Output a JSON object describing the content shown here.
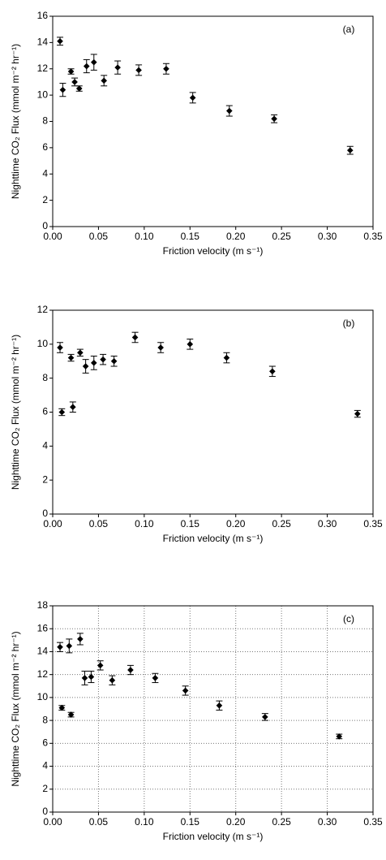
{
  "chart_data": [
    {
      "type": "scatter",
      "annotation": "(a)",
      "xlabel": "Friction velocity (m s⁻¹)",
      "ylabel": "Nighttime CO₂ Flux (mmol m⁻² hr⁻¹)",
      "color": "#000000",
      "grid": false,
      "x": [
        0.008,
        0.011,
        0.02,
        0.024,
        0.029,
        0.037,
        0.045,
        0.056,
        0.071,
        0.094,
        0.124,
        0.153,
        0.193,
        0.242,
        0.325
      ],
      "values": [
        14.1,
        10.4,
        11.8,
        11.0,
        10.5,
        12.2,
        12.5,
        11.1,
        12.1,
        11.9,
        12.0,
        9.8,
        8.8,
        8.2,
        5.8
      ],
      "errors": [
        0.3,
        0.5,
        0.2,
        0.3,
        0.2,
        0.5,
        0.6,
        0.4,
        0.5,
        0.4,
        0.4,
        0.4,
        0.4,
        0.3,
        0.3
      ],
      "xlim": [
        0,
        0.35
      ],
      "xticks": [
        {
          "value": 0,
          "label": "0.00"
        },
        {
          "value": 0.05,
          "label": "0.05"
        },
        {
          "value": 0.1,
          "label": "0.10"
        },
        {
          "value": 0.15,
          "label": "0.15"
        },
        {
          "value": 0.2,
          "label": "0.20"
        },
        {
          "value": 0.25,
          "label": "0.25"
        },
        {
          "value": 0.3,
          "label": "0.30"
        },
        {
          "value": 0.35,
          "label": "0.35"
        }
      ],
      "ylim": [
        0,
        16
      ],
      "yticks": [
        0,
        2,
        4,
        6,
        8,
        10,
        12,
        14,
        16
      ]
    },
    {
      "type": "scatter",
      "annotation": "(b)",
      "xlabel": "Friction velocity (m s⁻¹)",
      "ylabel": "Nighttime CO₂ Flux (mmol m⁻² hr⁻¹)",
      "color": "#000000",
      "grid": false,
      "x": [
        0.008,
        0.01,
        0.02,
        0.022,
        0.03,
        0.036,
        0.045,
        0.055,
        0.067,
        0.09,
        0.118,
        0.15,
        0.19,
        0.24,
        0.333
      ],
      "values": [
        9.8,
        6.0,
        9.2,
        6.3,
        9.5,
        8.7,
        8.9,
        9.1,
        9.0,
        10.4,
        9.8,
        10.0,
        9.2,
        8.4,
        5.9
      ],
      "errors": [
        0.3,
        0.2,
        0.2,
        0.3,
        0.2,
        0.4,
        0.4,
        0.3,
        0.3,
        0.3,
        0.3,
        0.3,
        0.3,
        0.3,
        0.2
      ],
      "xlim": [
        0,
        0.35
      ],
      "xticks": [
        {
          "value": 0,
          "label": "0.00"
        },
        {
          "value": 0.05,
          "label": "0.05"
        },
        {
          "value": 0.1,
          "label": "0.10"
        },
        {
          "value": 0.15,
          "label": "0.15"
        },
        {
          "value": 0.2,
          "label": "0.20"
        },
        {
          "value": 0.25,
          "label": "0.25"
        },
        {
          "value": 0.3,
          "label": "0.30"
        },
        {
          "value": 0.35,
          "label": "0.35"
        }
      ],
      "ylim": [
        0,
        12
      ],
      "yticks": [
        0,
        2,
        4,
        6,
        8,
        10,
        12
      ]
    },
    {
      "type": "scatter",
      "annotation": "(c)",
      "xlabel": "Friction velocity (m s⁻¹)",
      "ylabel": "Nighttime CO₂ Flux (mmol m⁻² hr⁻¹)",
      "color": "#000000",
      "grid": true,
      "x": [
        0.008,
        0.01,
        0.018,
        0.02,
        0.03,
        0.035,
        0.042,
        0.052,
        0.065,
        0.085,
        0.112,
        0.145,
        0.182,
        0.232,
        0.313
      ],
      "values": [
        14.4,
        9.1,
        14.5,
        8.5,
        15.1,
        11.7,
        11.8,
        12.8,
        11.5,
        12.4,
        11.7,
        10.6,
        9.3,
        8.3,
        6.6
      ],
      "errors": [
        0.4,
        0.2,
        0.6,
        0.2,
        0.5,
        0.6,
        0.5,
        0.4,
        0.4,
        0.4,
        0.4,
        0.4,
        0.4,
        0.3,
        0.2
      ],
      "xlim": [
        0,
        0.35
      ],
      "xticks": [
        {
          "value": 0,
          "label": "0.00"
        },
        {
          "value": 0.05,
          "label": "0.05"
        },
        {
          "value": 0.1,
          "label": "0.10"
        },
        {
          "value": 0.15,
          "label": "0.15"
        },
        {
          "value": 0.2,
          "label": "0.20"
        },
        {
          "value": 0.25,
          "label": "0.25"
        },
        {
          "value": 0.3,
          "label": "0.30"
        },
        {
          "value": 0.35,
          "label": "0.35"
        }
      ],
      "ylim": [
        0,
        18
      ],
      "yticks": [
        0,
        2,
        4,
        6,
        8,
        10,
        12,
        14,
        16,
        18
      ]
    }
  ]
}
